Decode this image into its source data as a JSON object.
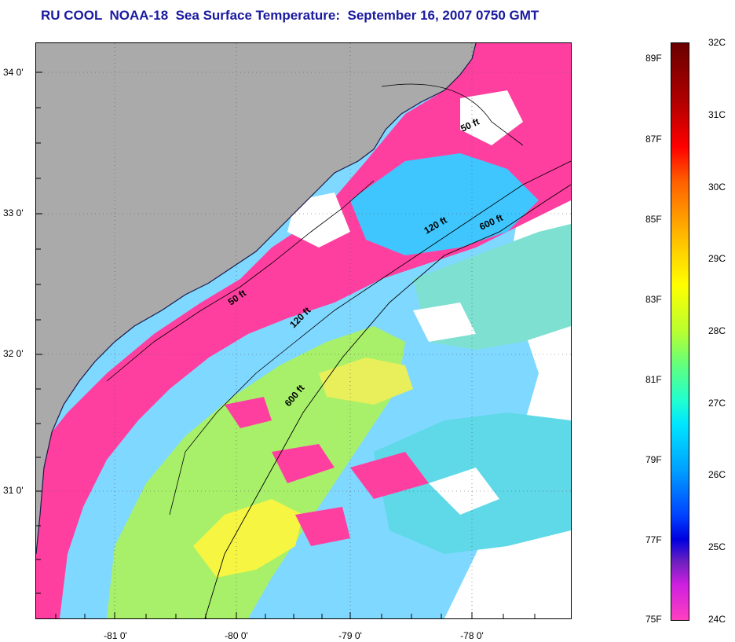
{
  "title": "RU COOL  NOAA-18  Sea Surface Temperature:  September 16, 2007 0750 GMT",
  "latitude_labels": [
    "34 0'",
    "33 0'",
    "32 0'",
    "31 0'"
  ],
  "longitude_labels": [
    "-81 0'",
    "-80 0'",
    "-79 0'",
    "-78 0'"
  ],
  "contours": {
    "c50_upper": "50 ft",
    "c120_upper": "120 ft",
    "c600_upper": "600 ft",
    "c50_lower": "50 ft",
    "c120_lower": "120 ft",
    "c600_lower": "600 ft"
  },
  "colorbar": {
    "celsius": [
      "32C",
      "31C",
      "30C",
      "29C",
      "28C",
      "27C",
      "26C",
      "25C",
      "24C"
    ],
    "fahrenheit": [
      "89F",
      "87F",
      "85F",
      "83F",
      "81F",
      "79F",
      "77F",
      "75F"
    ],
    "range_c": [
      24,
      32
    ],
    "range_f": [
      75,
      89.6
    ]
  },
  "colors": {
    "land": "#aaaaaa",
    "cloud": "#ffffff",
    "cold_24c": "#ff3fa0",
    "title": "#1a1aa0"
  }
}
